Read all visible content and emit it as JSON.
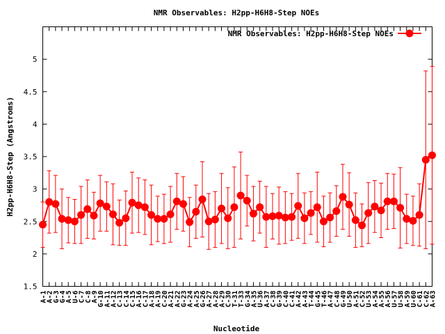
{
  "chart_data": {
    "type": "line",
    "title": "NMR Observables: H2pp-H6H8-Step NOEs",
    "xlabel": "Nucleotide",
    "ylabel": "H2pp-H6H8-Step (Angstroms)",
    "ylim": [
      1.5,
      5.5
    ],
    "yticks": [
      1.5,
      2,
      2.5,
      3,
      3.5,
      4,
      4.5,
      5
    ],
    "ytick_labels": [
      "1.5",
      "2",
      "2.5",
      "3",
      "3.5",
      "4",
      "4.5",
      "5"
    ],
    "grid": false,
    "legend_position": "top-right",
    "color": "#ff0000",
    "series": [
      {
        "name": "NMR Observables: H2pp-H6H8-Step NOEs",
        "x": [
          "A-1",
          "A-2",
          "G-3",
          "G-4",
          "A-5",
          "U-6",
          "C-7",
          "C-8",
          "A-9",
          "G-10",
          "A-11",
          "A-12",
          "C-13",
          "C-14",
          "C-15",
          "A-16",
          "C-17",
          "A-18",
          "A-19",
          "C-20",
          "A-21",
          "A-22",
          "G-23",
          "A-24",
          "A-25",
          "G-26",
          "A-27",
          "A-28",
          "A-29",
          "C-30",
          "T-31",
          "T-33",
          "G-34",
          "A-35",
          "U-36",
          "A-37",
          "C-38",
          "G-39",
          "C-40",
          "C-41",
          "A-42",
          "A-43",
          "T-44",
          "G-45",
          "T-46",
          "A-47",
          "C-48",
          "G-49",
          "U-50",
          "A-51",
          "C-52",
          "U-53",
          "A-54",
          "A-55",
          "A-56",
          "U-57",
          "U-58",
          "A-59",
          "U-60",
          "C-61",
          "C-62",
          "A-63"
        ],
        "y": [
          2.45,
          2.8,
          2.77,
          2.54,
          2.52,
          2.5,
          2.6,
          2.69,
          2.59,
          2.78,
          2.73,
          2.61,
          2.48,
          2.55,
          2.79,
          2.75,
          2.72,
          2.6,
          2.54,
          2.54,
          2.61,
          2.81,
          2.77,
          2.49,
          2.65,
          2.84,
          2.5,
          2.53,
          2.7,
          2.55,
          2.72,
          2.9,
          2.82,
          2.62,
          2.72,
          2.57,
          2.58,
          2.59,
          2.56,
          2.57,
          2.74,
          2.55,
          2.63,
          2.72,
          2.5,
          2.56,
          2.66,
          2.88,
          2.76,
          2.52,
          2.44,
          2.63,
          2.73,
          2.67,
          2.81,
          2.81,
          2.71,
          2.54,
          2.51,
          2.6,
          3.45,
          3.52
        ],
        "err": [
          0.35,
          0.48,
          0.44,
          0.46,
          0.35,
          0.34,
          0.44,
          0.45,
          0.36,
          0.43,
          0.38,
          0.47,
          0.35,
          0.42,
          0.47,
          0.42,
          0.42,
          0.46,
          0.35,
          0.38,
          0.43,
          0.43,
          0.42,
          0.38,
          0.41,
          0.58,
          0.43,
          0.43,
          0.54,
          0.47,
          0.62,
          0.67,
          0.39,
          0.42,
          0.4,
          0.47,
          0.35,
          0.44,
          0.4,
          0.36,
          0.5,
          0.39,
          0.33,
          0.54,
          0.39,
          0.38,
          0.39,
          0.5,
          0.49,
          0.42,
          0.33,
          0.47,
          0.4,
          0.42,
          0.43,
          0.42,
          0.62,
          0.38,
          0.38,
          0.48,
          1.37,
          1.37
        ]
      }
    ]
  }
}
